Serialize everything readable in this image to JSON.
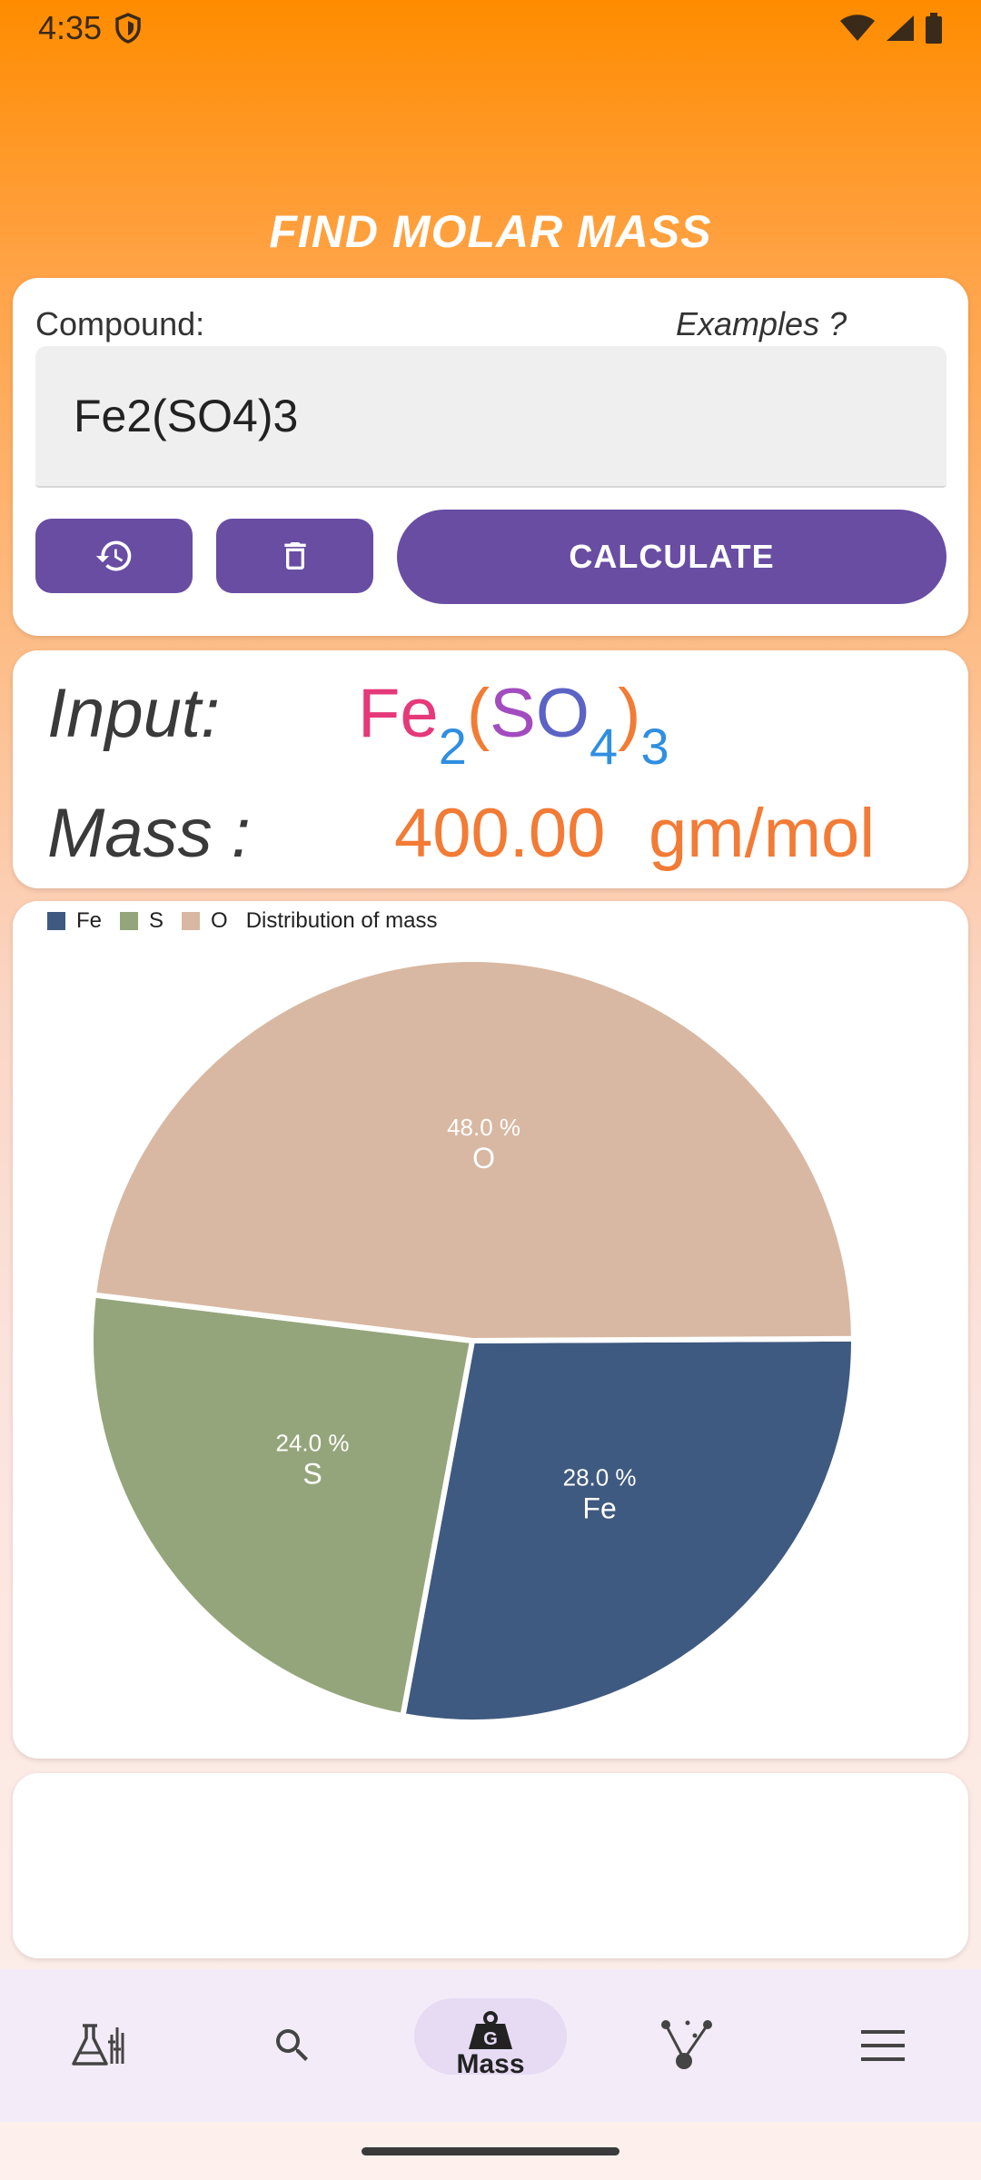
{
  "status_bar": {
    "time": "4:35",
    "icons": [
      "shield-icon",
      "wifi-icon",
      "signal-icon",
      "battery-icon"
    ]
  },
  "header": {
    "title": "FIND MOLAR MASS"
  },
  "compound_card": {
    "label": "Compound:",
    "examples_label": "Examples ?",
    "input_value": "Fe2(SO4)3",
    "calculate_label": "CALCULATE"
  },
  "result": {
    "input_caption": "Input:",
    "formula": {
      "fe": "Fe",
      "fe_sub": "2",
      "open": "(",
      "s": "S",
      "o": "O",
      "o_sub": "4",
      "close": ")",
      "group_sub": "3"
    },
    "mass_caption": "Mass :",
    "mass_value": "400.00",
    "mass_unit": "gm/mol"
  },
  "colors": {
    "accent": "#684da3",
    "fe_formula": "#e5397a",
    "s_formula": "#a24cc0",
    "o_formula": "#5b63c4",
    "subscript": "#2f8fe0",
    "mass": "#f27b35"
  },
  "chart_data": {
    "type": "pie",
    "title": "Distribution of mass",
    "legend_position": "top-left",
    "slices": [
      {
        "label": "Fe",
        "value": 28.0,
        "percent_label": "28.0 %",
        "color": "#3f5a80"
      },
      {
        "label": "S",
        "value": 24.0,
        "percent_label": "24.0 %",
        "color": "#95a57b"
      },
      {
        "label": "O",
        "value": 48.0,
        "percent_label": "48.0 %",
        "color": "#d8b8a2"
      }
    ]
  },
  "bottom_nav": {
    "items": [
      {
        "icon": "flask-icon",
        "label": ""
      },
      {
        "icon": "search-icon",
        "label": ""
      },
      {
        "icon": "weight-icon",
        "label": "Mass"
      },
      {
        "icon": "molecule-icon",
        "label": ""
      },
      {
        "icon": "menu-icon",
        "label": ""
      }
    ]
  }
}
